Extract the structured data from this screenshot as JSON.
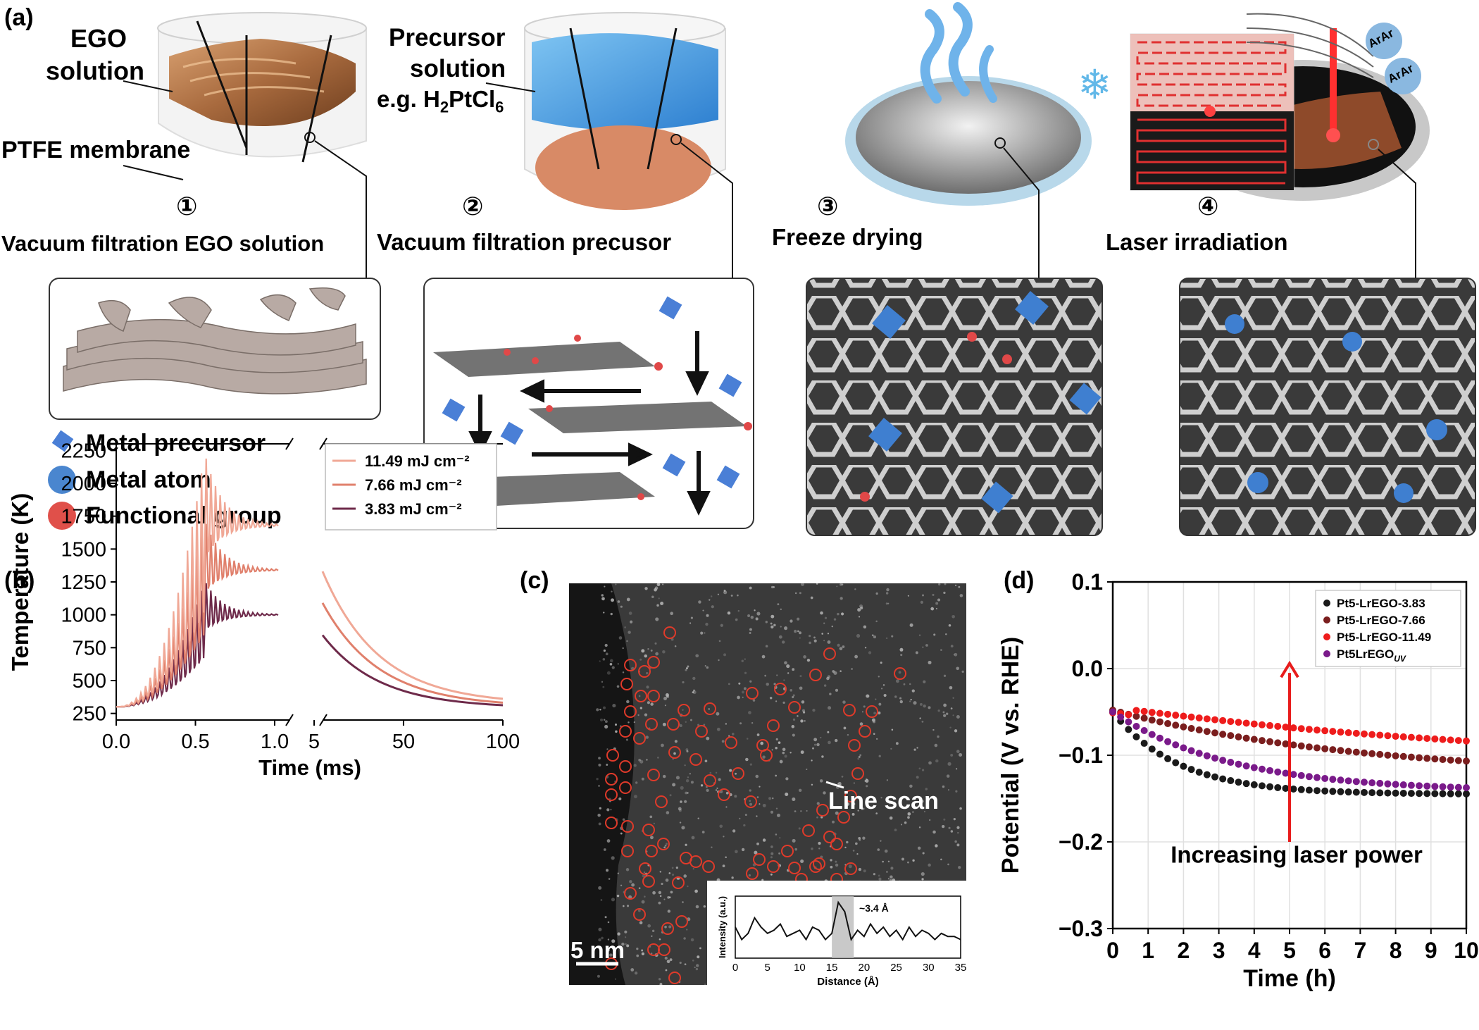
{
  "panel_a": {
    "label": "(a)",
    "ego_label": [
      "EGO",
      "solution"
    ],
    "ptfe_label": "PTFE membrane",
    "precursor_label": [
      "Precursor",
      "solution",
      "e.g. H",
      "2",
      "PtCl",
      "6"
    ],
    "steps": [
      {
        "num": "①",
        "text": "Vacuum filtration EGO solution"
      },
      {
        "num": "②",
        "text": "Vacuum filtration precusor"
      },
      {
        "num": "③",
        "text": "Freeze drying"
      },
      {
        "num": "④",
        "text": "Laser irradiation"
      }
    ],
    "ar_labels": [
      "ArAr",
      "ArAr"
    ],
    "legend": [
      {
        "text": "Metal precursor",
        "color": "#4a7fd6"
      },
      {
        "text": "Metal atom",
        "color": "#4a86cf"
      },
      {
        "text": "Functional group",
        "color": "#e0504a"
      }
    ]
  },
  "panel_b": {
    "label": "(b)",
    "chart_data": {
      "type": "line",
      "xlabel": "Time (ms)",
      "ylabel": "Temperature (K)",
      "yticks": [
        "250",
        "500",
        "750",
        "1000",
        "1250",
        "1500",
        "1750",
        "2000",
        "2250"
      ],
      "xticks_left": [
        "0.0",
        "0.5",
        "1.0"
      ],
      "xticks_right": [
        "5",
        "50",
        "100"
      ],
      "ylim": [
        200,
        2300
      ],
      "series": [
        {
          "name": "11.49 mJ cm⁻²",
          "color": "#f0a896",
          "peak": 2230,
          "plateau": 1680,
          "right_start": 1330,
          "right_end": 320
        },
        {
          "name": "7.66 mJ cm⁻²",
          "color": "#e0806c",
          "peak": 1720,
          "plateau": 1340,
          "right_start": 1090,
          "right_end": 300
        },
        {
          "name": "3.83 mJ cm⁻²",
          "color": "#6e2a4a",
          "peak": 1260,
          "plateau": 1000,
          "right_start": 845,
          "right_end": 290
        }
      ]
    }
  },
  "panel_c": {
    "label": "(c)",
    "line_scan": "Line scan",
    "scalebar": "5 nm",
    "inset": {
      "xlabel": "Distance (Å)",
      "ylabel": "Intensity (a.u.)",
      "annotation": "~3.4 Å",
      "xticks": [
        "0",
        "5",
        "10",
        "15",
        "20",
        "25",
        "30",
        "35"
      ]
    }
  },
  "panel_d": {
    "label": "(d)",
    "annotation": "Increasing laser power",
    "chart_data": {
      "type": "scatter",
      "xlabel": "Time (h)",
      "ylabel": "Potential (V vs. RHE)",
      "xlim": [
        0,
        10
      ],
      "ylim": [
        -0.3,
        0.1
      ],
      "xticks": [
        "0",
        "1",
        "2",
        "3",
        "4",
        "5",
        "6",
        "7",
        "8",
        "9",
        "10"
      ],
      "yticks": [
        "0.1",
        "0.0",
        "−0.1",
        "−0.2",
        "−0.3"
      ],
      "legend": "top-right",
      "series": [
        {
          "name": "Pt5-LrEGO-3.83",
          "color": "#1a1a1a",
          "start": -0.05,
          "end": -0.145,
          "k": 0.45
        },
        {
          "name": "Pt5-LrEGO-7.66",
          "color": "#7a1e1e",
          "start": -0.048,
          "end": -0.125,
          "k": 0.12
        },
        {
          "name": "Pt5-LrEGO-11.49",
          "color": "#ee1c1c",
          "start": -0.045,
          "end": -0.083,
          "k": 0.15
        },
        {
          "name": "Pt5LrEGO",
          "name_sub": "UV",
          "color": "#7a1a8a",
          "start": -0.05,
          "end": -0.142,
          "k": 0.25
        }
      ]
    }
  }
}
